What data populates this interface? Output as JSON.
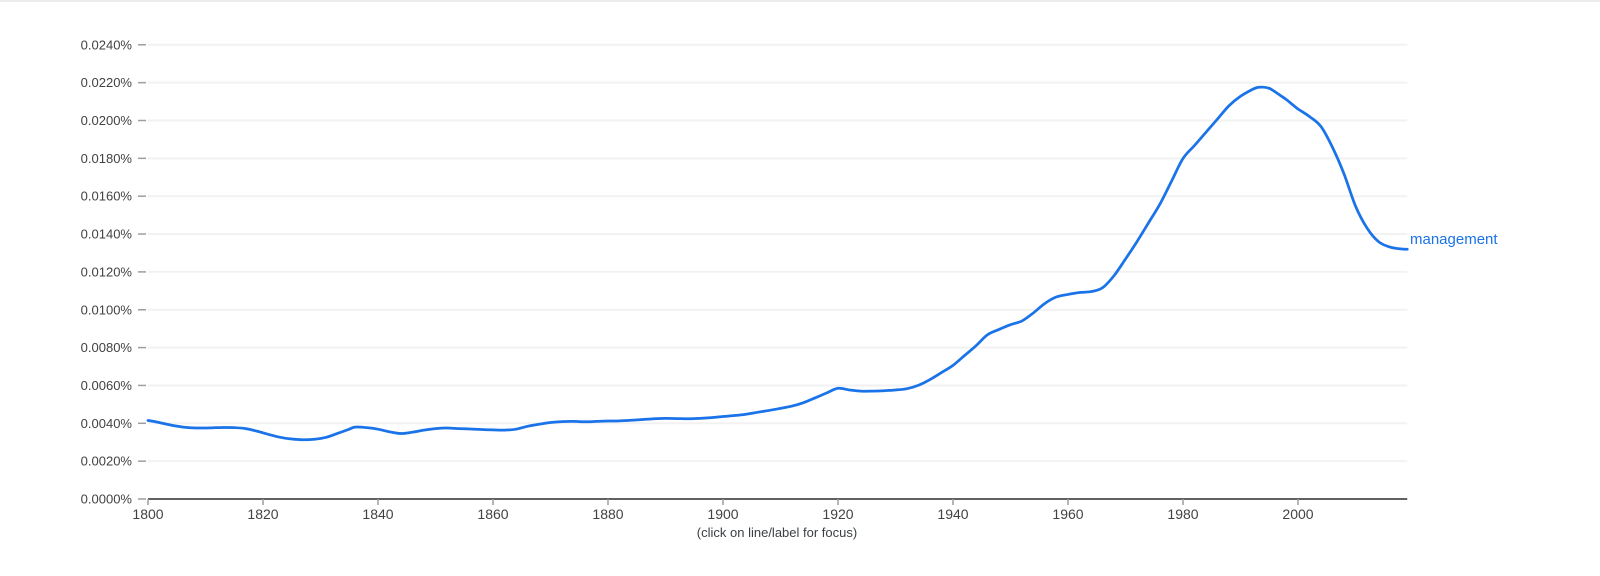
{
  "page": {
    "background": "#ffffff",
    "top_border_color": "#ececec"
  },
  "footer": {
    "hint": "(click on line/label for focus)"
  },
  "colors": {
    "series_blue": "#1a73e8",
    "axis": "#616161",
    "tick": "#9e9e9e",
    "grid": "#f2f2f2",
    "label_text": "#424242"
  },
  "chart_data": {
    "type": "line",
    "title": "",
    "xlabel": "",
    "ylabel": "",
    "grid": true,
    "legend_position": "end-of-line",
    "xlim": [
      1800,
      2019
    ],
    "ylim": [
      0,
      0.024
    ],
    "x_tick_values": [
      1800,
      1820,
      1840,
      1860,
      1880,
      1900,
      1920,
      1940,
      1960,
      1980,
      2000
    ],
    "x_tick_labels": [
      "1800",
      "1820",
      "1840",
      "1860",
      "1880",
      "1900",
      "1920",
      "1940",
      "1960",
      "1980",
      "2000"
    ],
    "y_tick_values": [
      0.0,
      0.002,
      0.004,
      0.006,
      0.008,
      0.01,
      0.012,
      0.014,
      0.016,
      0.018,
      0.02,
      0.022,
      0.024
    ],
    "y_tick_labels": [
      "0.0000%",
      "0.0020%",
      "0.0040%",
      "0.0060%",
      "0.0080%",
      "0.0100%",
      "0.0120%",
      "0.0140%",
      "0.0160%",
      "0.0180%",
      "0.0200%",
      "0.0220%",
      "0.0240%"
    ],
    "series": [
      {
        "name": "management",
        "color": "#1a73e8",
        "x": [
          1800,
          1801,
          1803,
          1805,
          1807,
          1809,
          1811,
          1813,
          1815,
          1817,
          1819,
          1821,
          1823,
          1825,
          1827,
          1829,
          1831,
          1833,
          1835,
          1836,
          1838,
          1840,
          1842,
          1844,
          1846,
          1848,
          1850,
          1852,
          1854,
          1856,
          1858,
          1860,
          1862,
          1864,
          1866,
          1868,
          1870,
          1872,
          1874,
          1876,
          1878,
          1880,
          1882,
          1884,
          1886,
          1888,
          1890,
          1892,
          1894,
          1896,
          1898,
          1900,
          1902,
          1904,
          1906,
          1908,
          1910,
          1912,
          1914,
          1916,
          1918,
          1920,
          1922,
          1924,
          1926,
          1928,
          1930,
          1932,
          1934,
          1936,
          1938,
          1940,
          1942,
          1944,
          1946,
          1948,
          1950,
          1952,
          1954,
          1956,
          1958,
          1960,
          1962,
          1964,
          1966,
          1968,
          1970,
          1972,
          1974,
          1976,
          1978,
          1980,
          1982,
          1984,
          1986,
          1988,
          1990,
          1992,
          1993,
          1994,
          1995,
          1996,
          1997,
          1998,
          1999,
          2000,
          2002,
          2004,
          2006,
          2008,
          2010,
          2012,
          2014,
          2016,
          2018,
          2019
        ],
        "values": [
          0.00415,
          0.0041,
          0.00397,
          0.00385,
          0.00377,
          0.00375,
          0.00376,
          0.00378,
          0.00377,
          0.00372,
          0.00358,
          0.00341,
          0.00326,
          0.00317,
          0.00313,
          0.00316,
          0.00326,
          0.00347,
          0.00369,
          0.0038,
          0.00377,
          0.00369,
          0.00355,
          0.00346,
          0.00353,
          0.00364,
          0.00372,
          0.00375,
          0.00372,
          0.0037,
          0.00367,
          0.00365,
          0.00364,
          0.00369,
          0.00384,
          0.00395,
          0.00404,
          0.00409,
          0.0041,
          0.00408,
          0.0041,
          0.00412,
          0.00413,
          0.00416,
          0.0042,
          0.00424,
          0.00426,
          0.00425,
          0.00424,
          0.00426,
          0.0043,
          0.00436,
          0.00441,
          0.00448,
          0.00458,
          0.00468,
          0.00479,
          0.00491,
          0.00509,
          0.00534,
          0.0056,
          0.00585,
          0.00576,
          0.0057,
          0.0057,
          0.00572,
          0.00576,
          0.00583,
          0.00601,
          0.00631,
          0.00668,
          0.00706,
          0.00758,
          0.0081,
          0.00868,
          0.00896,
          0.00921,
          0.00941,
          0.00984,
          0.01034,
          0.01068,
          0.01081,
          0.01091,
          0.01096,
          0.01116,
          0.0118,
          0.01268,
          0.0136,
          0.01459,
          0.01559,
          0.01679,
          0.01799,
          0.01868,
          0.01938,
          0.02008,
          0.02078,
          0.02128,
          0.02163,
          0.02175,
          0.02176,
          0.0217,
          0.02152,
          0.02131,
          0.0211,
          0.02085,
          0.02061,
          0.02021,
          0.01968,
          0.01858,
          0.01718,
          0.01548,
          0.01432,
          0.0136,
          0.01331,
          0.01321,
          0.0132
        ]
      }
    ]
  }
}
